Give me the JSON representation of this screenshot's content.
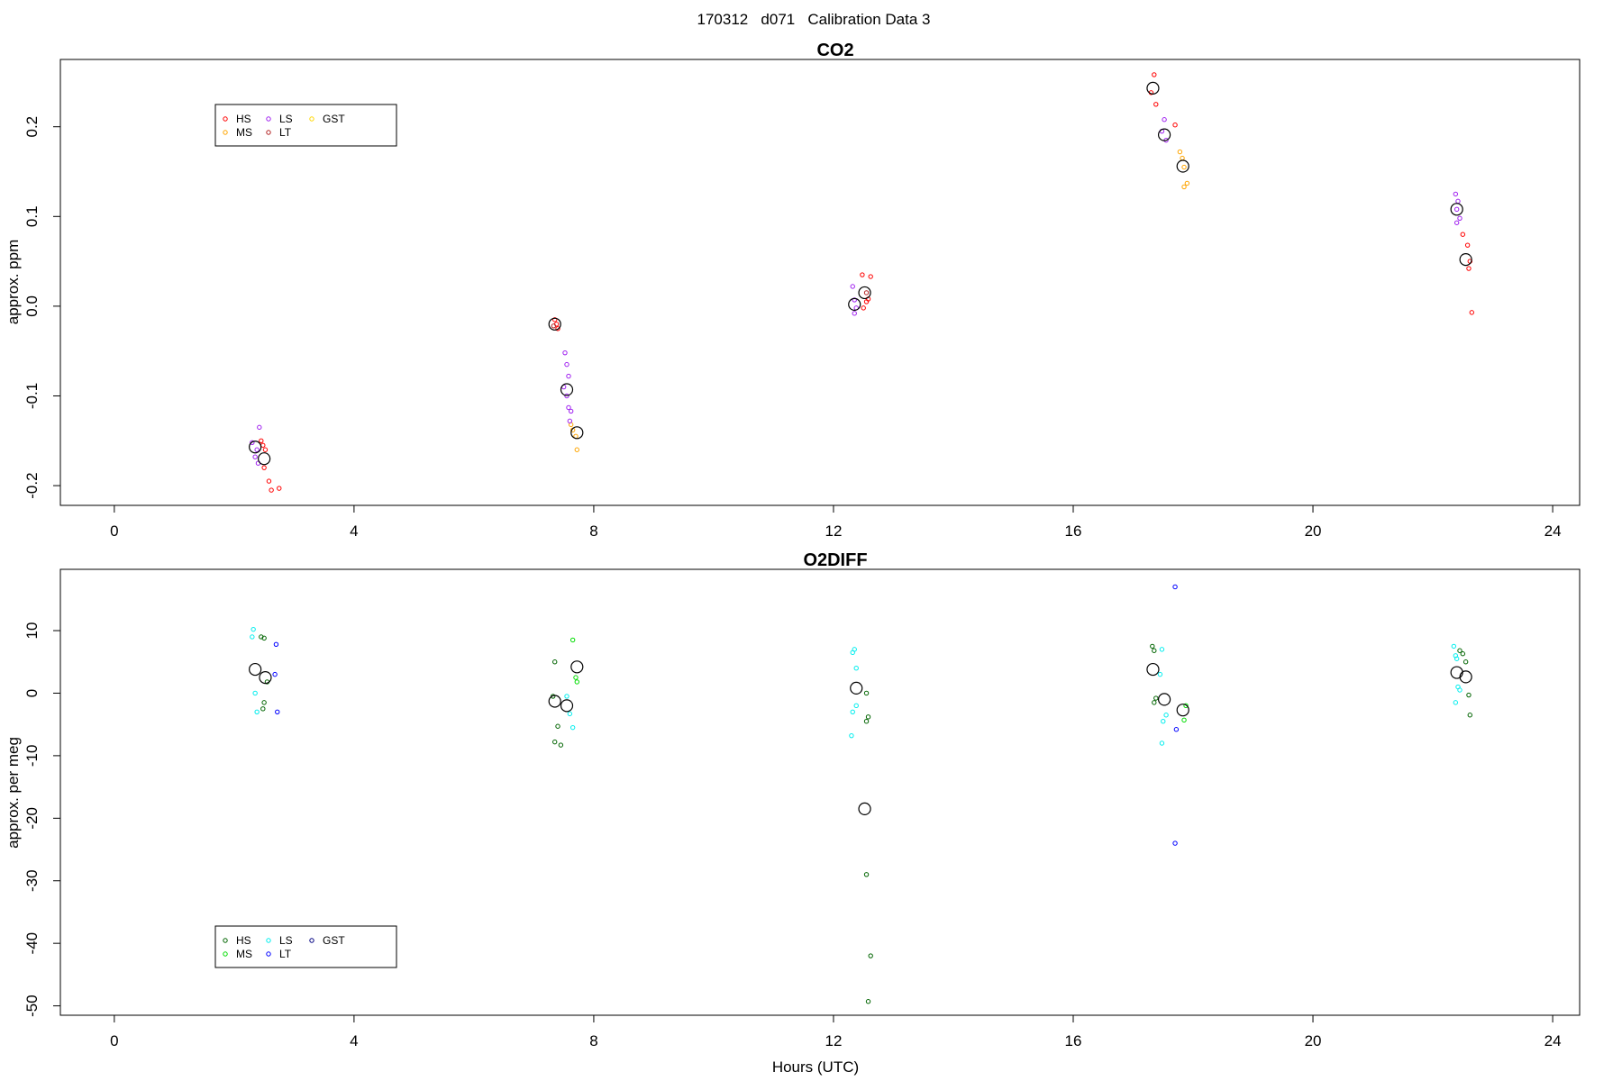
{
  "figure": {
    "title": "170312   d071   Calibration Data 3"
  },
  "chart_data": [
    {
      "type": "scatter",
      "title": "CO2",
      "xlabel": "",
      "ylabel": "approx. ppm",
      "xlim": [
        -0.9,
        24.45
      ],
      "ylim": [
        -0.222,
        0.275
      ],
      "xticks": [
        0,
        4,
        8,
        12,
        16,
        20,
        24
      ],
      "xtick_labels": [
        "0",
        "4",
        "8",
        "12",
        "16",
        "20",
        "24"
      ],
      "yticks": [
        -0.2,
        -0.1,
        0.0,
        0.1,
        0.2
      ],
      "ytick_labels": [
        "-0.2",
        "-0.1",
        "0.0",
        "0.1",
        "0.2"
      ],
      "grid": false,
      "legend": {
        "placement": "top-left",
        "entries": [
          {
            "label": "HS",
            "color": "#ff0000"
          },
          {
            "label": "MS",
            "color": "#ffa500"
          },
          {
            "label": "LS",
            "color": "#a020f0"
          },
          {
            "label": "LT",
            "color": "#b22222"
          },
          {
            "label": "GST",
            "color": "#ffd700"
          }
        ]
      },
      "series": [
        {
          "name": "HS",
          "color": "#ff0000",
          "points": [
            [
              2.45,
              -0.15
            ],
            [
              2.48,
              -0.155
            ],
            [
              2.52,
              -0.16
            ],
            [
              2.5,
              -0.18
            ],
            [
              2.58,
              -0.195
            ],
            [
              2.62,
              -0.205
            ],
            [
              2.75,
              -0.203
            ],
            [
              7.35,
              -0.015
            ],
            [
              7.38,
              -0.02
            ],
            [
              7.4,
              -0.025
            ],
            [
              12.48,
              0.035
            ],
            [
              12.62,
              0.033
            ],
            [
              12.55,
              0.005
            ],
            [
              12.5,
              -0.002
            ],
            [
              12.58,
              0.008
            ],
            [
              17.35,
              0.258
            ],
            [
              17.3,
              0.238
            ],
            [
              17.38,
              0.225
            ],
            [
              17.7,
              0.202
            ],
            [
              22.5,
              0.08
            ],
            [
              22.58,
              0.068
            ],
            [
              22.62,
              0.05
            ],
            [
              22.6,
              0.042
            ],
            [
              22.65,
              -0.007
            ]
          ]
        },
        {
          "name": "MS",
          "color": "#ffa500",
          "points": [
            [
              7.62,
              -0.132
            ],
            [
              7.65,
              -0.138
            ],
            [
              7.7,
              -0.145
            ],
            [
              7.72,
              -0.16
            ],
            [
              17.78,
              0.172
            ],
            [
              17.82,
              0.165
            ],
            [
              17.85,
              0.155
            ],
            [
              17.9,
              0.137
            ],
            [
              17.85,
              0.133
            ]
          ]
        },
        {
          "name": "LS",
          "color": "#a020f0",
          "points": [
            [
              2.3,
              -0.152
            ],
            [
              2.38,
              -0.16
            ],
            [
              2.35,
              -0.168
            ],
            [
              2.4,
              -0.175
            ],
            [
              2.42,
              -0.135
            ],
            [
              7.52,
              -0.052
            ],
            [
              7.55,
              -0.065
            ],
            [
              7.58,
              -0.078
            ],
            [
              7.5,
              -0.09
            ],
            [
              7.55,
              -0.1
            ],
            [
              7.58,
              -0.113
            ],
            [
              7.62,
              -0.117
            ],
            [
              7.6,
              -0.128
            ],
            [
              12.32,
              0.022
            ],
            [
              12.35,
              0.007
            ],
            [
              12.38,
              -0.002
            ],
            [
              12.35,
              -0.008
            ],
            [
              17.52,
              0.208
            ],
            [
              17.48,
              0.195
            ],
            [
              17.55,
              0.185
            ],
            [
              22.38,
              0.125
            ],
            [
              22.42,
              0.117
            ],
            [
              22.4,
              0.108
            ],
            [
              22.45,
              0.098
            ],
            [
              22.4,
              0.093
            ]
          ]
        },
        {
          "name": "LT",
          "color": "#b22222",
          "points": [
            [
              7.33,
              -0.022
            ],
            [
              12.55,
              0.015
            ]
          ]
        },
        {
          "name": "GST",
          "color": "#ffd700",
          "points": []
        }
      ],
      "means": [
        [
          2.35,
          -0.157
        ],
        [
          2.5,
          -0.17
        ],
        [
          7.35,
          -0.02
        ],
        [
          7.55,
          -0.093
        ],
        [
          7.72,
          -0.141
        ],
        [
          12.35,
          0.002
        ],
        [
          12.52,
          0.015
        ],
        [
          17.33,
          0.243
        ],
        [
          17.52,
          0.191
        ],
        [
          17.83,
          0.156
        ],
        [
          22.4,
          0.108
        ],
        [
          22.55,
          0.052
        ]
      ]
    },
    {
      "type": "scatter",
      "title": "O2DIFF",
      "xlabel": "Hours (UTC)",
      "ylabel": "approx. per meg",
      "xlim": [
        -0.9,
        24.45
      ],
      "ylim": [
        -51.5,
        19.8
      ],
      "xticks": [
        0,
        4,
        8,
        12,
        16,
        20,
        24
      ],
      "xtick_labels": [
        "0",
        "4",
        "8",
        "12",
        "16",
        "20",
        "24"
      ],
      "yticks": [
        -50,
        -40,
        -30,
        -20,
        -10,
        0,
        10
      ],
      "ytick_labels": [
        "-50",
        "-40",
        "-30",
        "-20",
        "-10",
        "0",
        "10"
      ],
      "grid": false,
      "legend": {
        "placement": "bottom-left",
        "entries": [
          {
            "label": "HS",
            "color": "#006400"
          },
          {
            "label": "MS",
            "color": "#00dd00"
          },
          {
            "label": "LS",
            "color": "#00eeee"
          },
          {
            "label": "LT",
            "color": "#0000ff"
          },
          {
            "label": "GST",
            "color": "#000080"
          }
        ]
      },
      "series": [
        {
          "name": "HS",
          "color": "#006400",
          "points": [
            [
              2.45,
              9.0
            ],
            [
              2.5,
              8.8
            ],
            [
              2.55,
              1.8
            ],
            [
              2.5,
              -1.5
            ],
            [
              2.48,
              -2.5
            ],
            [
              7.35,
              5.0
            ],
            [
              7.32,
              -0.5
            ],
            [
              7.4,
              -5.3
            ],
            [
              7.35,
              -7.8
            ],
            [
              7.45,
              -8.3
            ],
            [
              12.55,
              0.0
            ],
            [
              12.58,
              -3.8
            ],
            [
              12.55,
              -4.5
            ],
            [
              12.55,
              -29.0
            ],
            [
              12.62,
              -42.0
            ],
            [
              12.58,
              -49.3
            ],
            [
              17.32,
              7.5
            ],
            [
              17.35,
              6.8
            ],
            [
              17.38,
              -0.8
            ],
            [
              17.35,
              -1.5
            ],
            [
              22.45,
              6.8
            ],
            [
              22.5,
              6.3
            ],
            [
              22.55,
              5.0
            ],
            [
              22.6,
              -0.3
            ],
            [
              22.62,
              -3.5
            ]
          ]
        },
        {
          "name": "MS",
          "color": "#00dd00",
          "points": [
            [
              7.65,
              8.5
            ],
            [
              7.7,
              2.5
            ],
            [
              7.72,
              1.8
            ],
            [
              17.88,
              -2.0
            ],
            [
              17.85,
              -4.3
            ]
          ]
        },
        {
          "name": "LS",
          "color": "#00eeee",
          "points": [
            [
              2.32,
              10.2
            ],
            [
              2.3,
              9.0
            ],
            [
              2.35,
              0.0
            ],
            [
              2.38,
              -3.0
            ],
            [
              7.55,
              -0.5
            ],
            [
              7.6,
              -3.3
            ],
            [
              7.65,
              -5.5
            ],
            [
              12.35,
              7.0
            ],
            [
              12.32,
              6.5
            ],
            [
              12.38,
              4.0
            ],
            [
              12.32,
              -3.0
            ],
            [
              12.38,
              -2.0
            ],
            [
              12.3,
              -6.8
            ],
            [
              17.48,
              7.0
            ],
            [
              17.45,
              3.0
            ],
            [
              17.55,
              -3.5
            ],
            [
              17.5,
              -4.5
            ],
            [
              17.48,
              -8.0
            ],
            [
              22.35,
              7.5
            ],
            [
              22.38,
              6.0
            ],
            [
              22.4,
              5.5
            ],
            [
              22.42,
              1.0
            ],
            [
              22.45,
              0.5
            ],
            [
              22.38,
              -1.5
            ]
          ]
        },
        {
          "name": "LT",
          "color": "#0000ff",
          "points": [
            [
              2.7,
              7.8
            ],
            [
              2.68,
              3.0
            ],
            [
              2.72,
              -3.0
            ],
            [
              17.7,
              17.0
            ],
            [
              17.72,
              -5.8
            ],
            [
              17.7,
              -24.0
            ]
          ]
        },
        {
          "name": "GST",
          "color": "#000080",
          "points": []
        }
      ],
      "means": [
        [
          2.35,
          3.8
        ],
        [
          2.52,
          2.5
        ],
        [
          7.35,
          -1.3
        ],
        [
          7.55,
          -2.0
        ],
        [
          7.72,
          4.2
        ],
        [
          12.38,
          0.8
        ],
        [
          12.52,
          -18.5
        ],
        [
          17.33,
          3.8
        ],
        [
          17.52,
          -1.0
        ],
        [
          17.83,
          -2.7
        ],
        [
          22.4,
          3.3
        ],
        [
          22.55,
          2.6
        ]
      ]
    }
  ]
}
